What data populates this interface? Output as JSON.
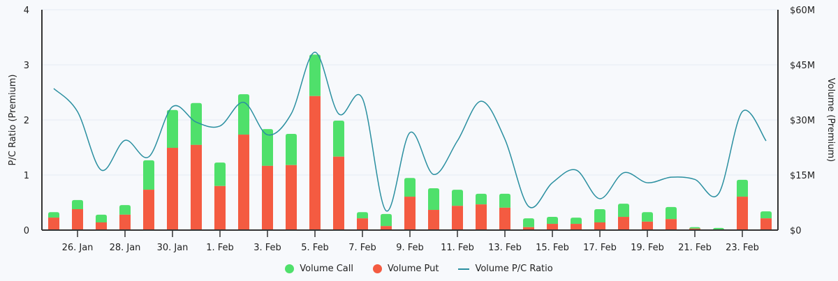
{
  "chart_data": {
    "type": "bar",
    "stacked": true,
    "title": "",
    "xlabel": "",
    "ylabel_left": "P/C Ratio (Premium)",
    "ylabel_right": "Volume (Premium)",
    "ylim_left": [
      0,
      4
    ],
    "ylim_right": [
      0,
      60
    ],
    "yticks_left": [
      "0",
      "1",
      "2",
      "3",
      "4"
    ],
    "yticks_right": [
      "$0",
      "$15M",
      "$30M",
      "$45M",
      "$60M"
    ],
    "right_unit": "$M",
    "grid": true,
    "legend_position": "bottom",
    "categories": [
      "25. Jan",
      "26. Jan",
      "27. Jan",
      "28. Jan",
      "29. Jan",
      "30. Jan",
      "31. Jan",
      "1. Feb",
      "2. Feb",
      "3. Feb",
      "4. Feb",
      "5. Feb",
      "6. Feb",
      "7. Feb",
      "8. Feb",
      "9. Feb",
      "10. Feb",
      "11. Feb",
      "12. Feb",
      "13. Feb",
      "14. Feb",
      "15. Feb",
      "16. Feb",
      "17. Feb",
      "18. Feb",
      "19. Feb",
      "20. Feb",
      "21. Feb",
      "22. Feb",
      "23. Feb",
      "24. Feb"
    ],
    "xtick_labels": [
      "26. Jan",
      "28. Jan",
      "30. Jan",
      "1. Feb",
      "3. Feb",
      "5. Feb",
      "7. Feb",
      "9. Feb",
      "11. Feb",
      "13. Feb",
      "15. Feb",
      "17. Feb",
      "19. Feb",
      "21. Feb",
      "23. Feb"
    ],
    "series": [
      {
        "name": "Volume Put",
        "axis": "right",
        "color": "#f45b41",
        "values": [
          3.4,
          5.7,
          2.1,
          4.2,
          11.0,
          22.4,
          23.2,
          12.0,
          26.0,
          17.5,
          17.7,
          36.5,
          20.0,
          3.2,
          1.1,
          9.1,
          5.5,
          6.6,
          7.0,
          6.1,
          0.8,
          1.7,
          1.7,
          2.1,
          3.6,
          2.3,
          3.0,
          0.4,
          0.2,
          9.1,
          3.2
        ]
      },
      {
        "name": "Volume Call",
        "axis": "right",
        "color": "#4fe06b",
        "values": [
          1.5,
          2.5,
          2.1,
          2.6,
          8.0,
          10.3,
          11.4,
          6.4,
          11.0,
          10.0,
          8.5,
          11.3,
          9.8,
          1.7,
          3.3,
          5.1,
          5.9,
          4.4,
          2.9,
          3.8,
          2.4,
          1.9,
          1.7,
          3.6,
          3.6,
          2.6,
          3.3,
          0.4,
          0.4,
          4.6,
          1.9
        ]
      },
      {
        "name": "Volume P/C Ratio",
        "axis": "left",
        "type": "line",
        "color": "#2a8fa0",
        "values": [
          2.57,
          2.15,
          1.09,
          1.63,
          1.33,
          2.24,
          1.96,
          1.89,
          2.32,
          1.73,
          2.11,
          3.23,
          2.11,
          2.39,
          0.35,
          1.77,
          1.01,
          1.62,
          2.34,
          1.65,
          0.43,
          0.86,
          1.09,
          0.57,
          1.04,
          0.86,
          0.96,
          0.92,
          0.66,
          2.15,
          1.62
        ]
      }
    ]
  },
  "legend": [
    {
      "label": "Volume Call",
      "color": "#4fe06b",
      "shape": "circle"
    },
    {
      "label": "Volume Put",
      "color": "#f45b41",
      "shape": "circle"
    },
    {
      "label": "Volume P/C Ratio",
      "color": "#2a8fa0",
      "shape": "line"
    }
  ]
}
